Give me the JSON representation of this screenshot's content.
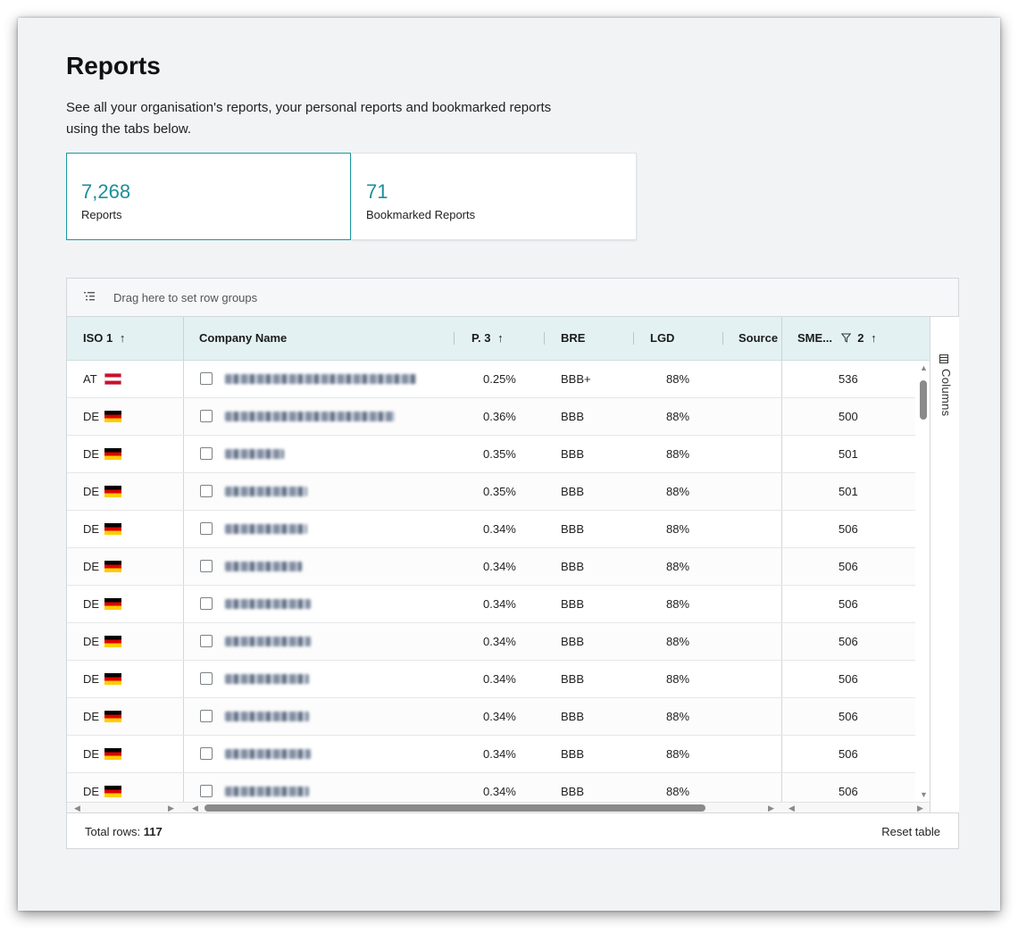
{
  "page": {
    "title": "Reports",
    "description": "See all your organisation's reports, your personal reports and bookmarked reports using the tabs below."
  },
  "tabs": [
    {
      "count": "7,268",
      "label": "Reports",
      "active": true
    },
    {
      "count": "71",
      "label": "Bookmarked Reports",
      "active": false
    }
  ],
  "grid": {
    "group_bar_text": "Drag here to set row groups",
    "columns": [
      {
        "label": "ISO",
        "sort_order": "1",
        "sort": "asc"
      },
      {
        "label": "Company Name"
      },
      {
        "label": "P.",
        "sort_order": "3",
        "sort": "asc"
      },
      {
        "label": "BRE"
      },
      {
        "label": "LGD"
      },
      {
        "label": "Source"
      },
      {
        "label": "SME...",
        "sort_order": "2",
        "sort": "asc",
        "filtered": true
      }
    ],
    "side_panel_label": "Columns",
    "rows": [
      {
        "iso": "AT",
        "flag": "at",
        "p": "0.25%",
        "bre": "BBB+",
        "lgd": "88%",
        "sme": "536"
      },
      {
        "iso": "DE",
        "flag": "de",
        "p": "0.36%",
        "bre": "BBB",
        "lgd": "88%",
        "sme": "500"
      },
      {
        "iso": "DE",
        "flag": "de",
        "p": "0.35%",
        "bre": "BBB",
        "lgd": "88%",
        "sme": "501"
      },
      {
        "iso": "DE",
        "flag": "de",
        "p": "0.35%",
        "bre": "BBB",
        "lgd": "88%",
        "sme": "501"
      },
      {
        "iso": "DE",
        "flag": "de",
        "p": "0.34%",
        "bre": "BBB",
        "lgd": "88%",
        "sme": "506"
      },
      {
        "iso": "DE",
        "flag": "de",
        "p": "0.34%",
        "bre": "BBB",
        "lgd": "88%",
        "sme": "506"
      },
      {
        "iso": "DE",
        "flag": "de",
        "p": "0.34%",
        "bre": "BBB",
        "lgd": "88%",
        "sme": "506"
      },
      {
        "iso": "DE",
        "flag": "de",
        "p": "0.34%",
        "bre": "BBB",
        "lgd": "88%",
        "sme": "506"
      },
      {
        "iso": "DE",
        "flag": "de",
        "p": "0.34%",
        "bre": "BBB",
        "lgd": "88%",
        "sme": "506"
      },
      {
        "iso": "DE",
        "flag": "de",
        "p": "0.34%",
        "bre": "BBB",
        "lgd": "88%",
        "sme": "506"
      },
      {
        "iso": "DE",
        "flag": "de",
        "p": "0.34%",
        "bre": "BBB",
        "lgd": "88%",
        "sme": "506"
      },
      {
        "iso": "DE",
        "flag": "de",
        "p": "0.34%",
        "bre": "BBB",
        "lgd": "88%",
        "sme": "506"
      }
    ],
    "footer": {
      "total_label": "Total rows:",
      "total_value": "117",
      "reset_label": "Reset table"
    }
  },
  "colors": {
    "accent": "#19989f",
    "header_bg": "#e3f1f3"
  },
  "icons": [
    "row-group-icon",
    "sort-asc-icon",
    "filter-icon",
    "columns-icon",
    "checkbox-icon"
  ]
}
